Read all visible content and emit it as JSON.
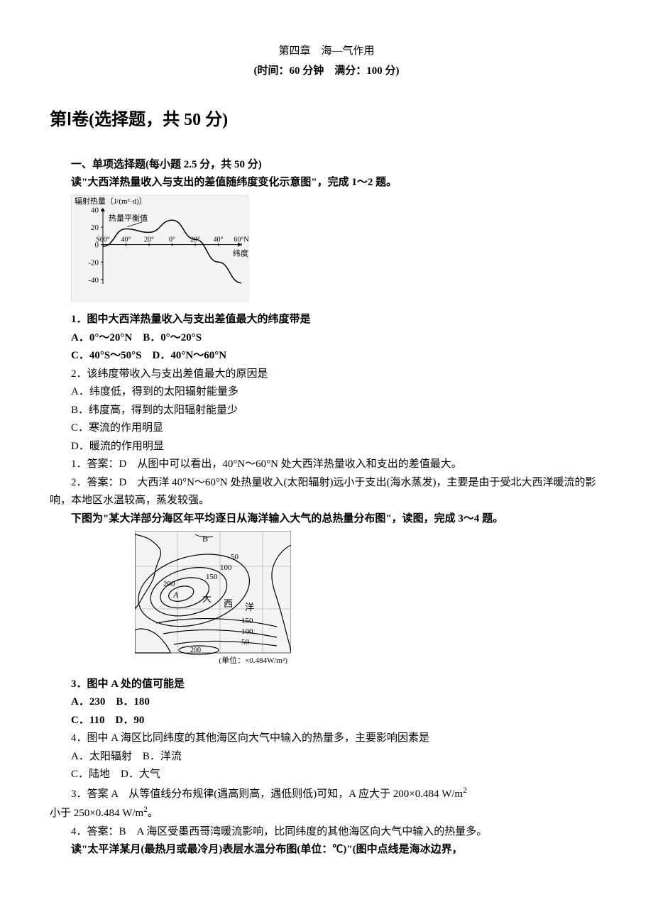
{
  "chapter": "第四章　海—气作用",
  "time_score": "(时间：60 分钟　满分：100 分)",
  "section1_header": "第Ⅰ卷(选择题，共 50 分)",
  "mcq_heading": "一、单项选择题(每小题 2.5 分，共 50 分)",
  "intro_q12": "读\"大西洋热量收入与支出的差值随纬度变化示意图\"，完成 1～2 题。",
  "chart1": {
    "type": "line",
    "y_label": "辐射热量〔J/(m²·d)〕",
    "x_label": "纬度",
    "x_ticks": [
      "S 60°",
      "40°",
      "20°",
      "0°",
      "20°",
      "40°",
      "60° N"
    ],
    "y_ticks": [
      -40,
      -20,
      0,
      20,
      40
    ],
    "x_positions": [
      0,
      1,
      2,
      3,
      4,
      5,
      6
    ],
    "values": [
      -2,
      18,
      14,
      28,
      6,
      -20,
      -44
    ],
    "equilibrium_label": "热量平衡值",
    "line_color": "#000000",
    "axis_color": "#000000",
    "font_size_axis": 11,
    "background": "#f4f4f4"
  },
  "q1": "1．图中大西洋热量收入与支出差值最大的纬度带是",
  "q1_A": "A．0°～20°N",
  "q1_B": "B．0°～20°S",
  "q1_C": "C．40°S～50°S",
  "q1_D": "D．40°N～60°N",
  "q2": "2．该纬度带收入与支出差值最大的原因是",
  "q2_A": "A．纬度低，得到的太阳辐射能量多",
  "q2_B": "B．纬度高，得到的太阳辐射能量少",
  "q2_C": "C．寒流的作用明显",
  "q2_D": "D．暖流的作用明显",
  "ans1": "1．答案：D　从图中可以看出，40°N～60°N 处大西洋热量收入和支出的差值最大。",
  "ans2": "2．答案：D　大西洋 40°N～60°N 处热量收入(太阳辐射)远小于支出(海水蒸发)，主要是由于受北大西洋暖流的影响，本地区水温较高，蒸发较强。",
  "intro_q34": "下图为\"某大洋部分海区年平均逐日从海洋输入大气的总热量分布图\"，读图，完成 3～4 题。",
  "chart2": {
    "type": "contour-map",
    "label_A": "A",
    "label_B": "B",
    "ocean_labels": [
      "大",
      "西",
      "洋"
    ],
    "contour_values": [
      50,
      100,
      150,
      200,
      200,
      150,
      100,
      50
    ],
    "unit_label": "(单位：×0.484W/m²)",
    "line_color": "#000000",
    "background": "#f4f4f4",
    "font_size_labels": 12,
    "font_size_unit": 11
  },
  "q3": "3．图中 A 处的值可能是",
  "q3_A": "A．230",
  "q3_B": "B．180",
  "q3_C": "C．110",
  "q3_D": "D．90",
  "q4": "4．图中 A 海区比同纬度的其他海区向大气中输入的热量多，主要影响因素是",
  "q4_A": "A．太阳辐射",
  "q4_B": "B．洋流",
  "q4_C": "C．陆地",
  "q4_D": "D．大气",
  "ans3_prefix": "3．答案 A　从等值线分布规律(遇高则高，遇低则低)可知，A 应大于 200×0.484 W/m",
  "ans3_suffix": "小于 250×0.484 W/m",
  "ans3_period": "。",
  "ans4": "4．答案：B　A 海区受墨西哥湾暖流影响，比同纬度的其他海区向大气中输入的热量多。",
  "intro_q56": "读\"太平洋某月(最热月或最冷月)表层水温分布图(单位：℃)\"(图中点线是海冰边界，"
}
